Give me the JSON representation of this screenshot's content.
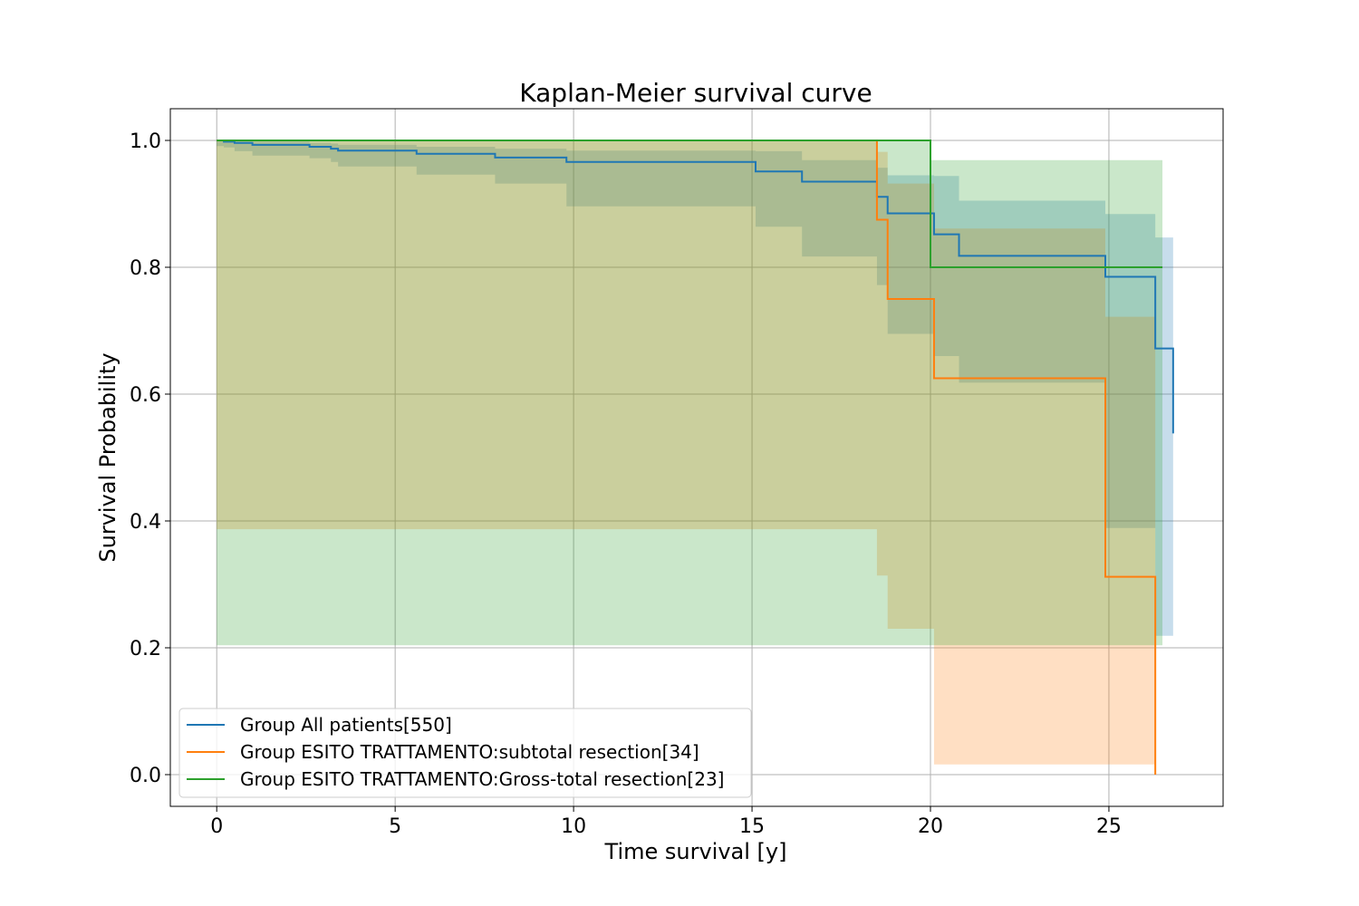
{
  "chart_data": {
    "type": "line",
    "title": "Kaplan-Meier survival curve",
    "xlabel": "Time survival [y]",
    "ylabel": "Survival Probability",
    "xlim": [
      -1.3,
      28.2
    ],
    "ylim": [
      -0.05,
      1.05
    ],
    "xticks": [
      0,
      5,
      10,
      15,
      20,
      25
    ],
    "yticks": [
      0.0,
      0.2,
      0.4,
      0.6,
      0.8,
      1.0
    ],
    "xtick_labels": [
      "0",
      "5",
      "10",
      "15",
      "20",
      "25"
    ],
    "ytick_labels": [
      "0.0",
      "0.2",
      "0.4",
      "0.6",
      "0.8",
      "1.0"
    ],
    "grid": true,
    "legend_position": "bottom-left",
    "series": [
      {
        "name": "Group All patients[550]",
        "color": "#1f77b4",
        "x": [
          0,
          0.2,
          0.5,
          1.0,
          2.6,
          3.2,
          3.4,
          5.6,
          7.8,
          9.8,
          15.1,
          16.4,
          18.5,
          18.8,
          20.1,
          20.8,
          24.9,
          26.3,
          26.8
        ],
        "y": [
          1.0,
          0.998,
          0.996,
          0.993,
          0.99,
          0.987,
          0.984,
          0.979,
          0.973,
          0.966,
          0.951,
          0.935,
          0.911,
          0.885,
          0.852,
          0.818,
          0.785,
          0.672,
          0.538
        ],
        "ci_lower": [
          1.0,
          0.991,
          0.989,
          0.983,
          0.976,
          0.972,
          0.966,
          0.959,
          0.946,
          0.932,
          0.896,
          0.864,
          0.817,
          0.772,
          0.695,
          0.66,
          0.618,
          0.389,
          0.219
        ],
        "ci_upper": [
          1.0,
          1.0,
          0.999,
          0.998,
          0.996,
          0.995,
          0.993,
          0.99,
          0.987,
          0.984,
          0.983,
          0.969,
          0.957,
          0.945,
          0.944,
          0.905,
          0.884,
          0.847,
          0.777
        ]
      },
      {
        "name": "Group ESITO TRATTAMENTO:subtotal resection[34]",
        "color": "#ff7f0e",
        "x": [
          0,
          18.5,
          18.8,
          20.1,
          24.9,
          26.3
        ],
        "y": [
          1.0,
          0.875,
          0.75,
          0.625,
          0.312,
          0.0
        ],
        "ci_lower": [
          1.0,
          0.387,
          0.314,
          0.23,
          0.016,
          0.016
        ],
        "ci_upper": [
          1.0,
          0.982,
          0.932,
          0.861,
          0.722,
          0.722
        ]
      },
      {
        "name": "Group ESITO TRATTAMENTO:Gross-total resection[23]",
        "color": "#2ca02c",
        "x": [
          0,
          20.0,
          26.5
        ],
        "y": [
          1.0,
          0.8,
          0.8
        ],
        "ci_lower": [
          1.0,
          0.204,
          0.204
        ],
        "ci_upper": [
          1.0,
          0.969,
          0.969
        ]
      }
    ]
  }
}
